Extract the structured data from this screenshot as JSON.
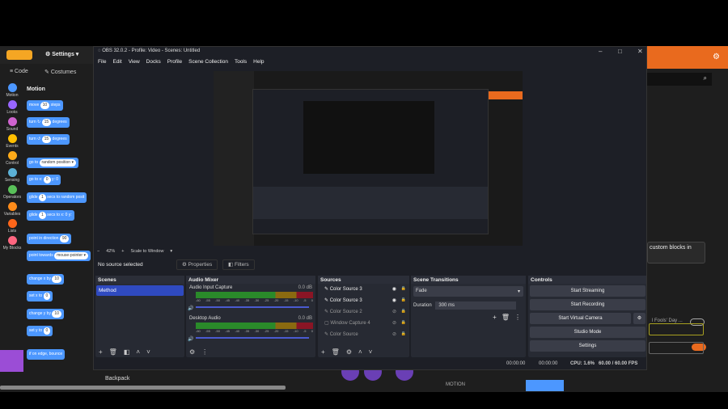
{
  "scratch": {
    "logo": "Scratch",
    "settings": "Settings",
    "tabs": [
      "Code",
      "Costumes"
    ],
    "categories": [
      {
        "label": "Motion",
        "color": "#4c97ff"
      },
      {
        "label": "Looks",
        "color": "#9966ff"
      },
      {
        "label": "Sound",
        "color": "#cf63cf"
      },
      {
        "label": "Events",
        "color": "#ffbf00"
      },
      {
        "label": "Control",
        "color": "#ffab19"
      },
      {
        "label": "Sensing",
        "color": "#5cb1d6"
      },
      {
        "label": "Operators",
        "color": "#59c059"
      },
      {
        "label": "Variables",
        "color": "#ff8c1a"
      },
      {
        "label": "Lists",
        "color": "#ff661a"
      },
      {
        "label": "My Blocks",
        "color": "#ff6680"
      }
    ],
    "section": "Motion",
    "blocks": [
      {
        "pre": "move",
        "val": "10",
        "post": "steps"
      },
      {
        "pre": "turn ↻",
        "val": "15",
        "post": "degrees"
      },
      {
        "pre": "turn ↺",
        "val": "15",
        "post": "degrees"
      },
      {
        "pre": "go to",
        "val": "random position ▾",
        "post": ""
      },
      {
        "pre": "go to x:",
        "val": "0",
        "post": "y: 0"
      },
      {
        "pre": "glide",
        "val": "1",
        "post": "secs to random posit"
      },
      {
        "pre": "glide",
        "val": "1",
        "post": "secs to x: 0 y:"
      },
      {
        "pre": "point in direction",
        "val": "90",
        "post": ""
      },
      {
        "pre": "point towards",
        "val": "mouse-pointer ▾",
        "post": ""
      },
      {
        "pre": "change x by",
        "val": "10",
        "post": ""
      },
      {
        "pre": "set x to",
        "val": "0",
        "post": ""
      },
      {
        "pre": "change y by",
        "val": "10",
        "post": ""
      },
      {
        "pre": "set y to",
        "val": "0",
        "post": ""
      },
      {
        "pre": "if on edge, bounce",
        "val": "",
        "post": ""
      }
    ],
    "backpack": "Backpack",
    "custom_blocks_text": "custom blocks in",
    "fools_day": "l Fools' Day ...",
    "motion_label": "MOTION"
  },
  "obs": {
    "title": "OBS 32.0.2 - Profile: Video - Scenes: Untitled",
    "menu": [
      "File",
      "Edit",
      "View",
      "Docks",
      "Profile",
      "Scene Collection",
      "Tools",
      "Help"
    ],
    "zoom": "42%",
    "scale": "Scale to Window",
    "no_source": "No source selected",
    "properties": "Properties",
    "filters": "Filters",
    "scenes": {
      "title": "Scenes",
      "items": [
        "Method"
      ]
    },
    "audio": {
      "title": "Audio Mixer",
      "channels": [
        {
          "name": "Audio Input Capture",
          "db": "0.0 dB"
        },
        {
          "name": "Desktop Audio",
          "db": "0.0 dB"
        }
      ],
      "ticks": [
        "-60",
        "-55",
        "-50",
        "-45",
        "-40",
        "-35",
        "-30",
        "-25",
        "-20",
        "-15",
        "-10",
        "-5",
        "0"
      ]
    },
    "sources": {
      "title": "Sources",
      "items": [
        {
          "name": "Color Source 3",
          "visible": true
        },
        {
          "name": "Color Source 3",
          "visible": true
        },
        {
          "name": "Color Source 2",
          "visible": false
        },
        {
          "name": "Window Capture 4",
          "visible": false
        },
        {
          "name": "Color Source",
          "visible": false
        }
      ]
    },
    "transitions": {
      "title": "Scene Transitions",
      "type": "Fade",
      "duration_label": "Duration",
      "duration": "300 ms"
    },
    "controls": {
      "title": "Controls",
      "buttons": [
        "Start Streaming",
        "Start Recording",
        "Start Virtual Camera",
        "Studio Mode",
        "Settings"
      ]
    },
    "status": {
      "stream_time": "00:00:00",
      "rec_time": "00:00:00",
      "cpu": "CPU: 1.6%",
      "fps": "60.00 / 60.00 FPS"
    }
  }
}
